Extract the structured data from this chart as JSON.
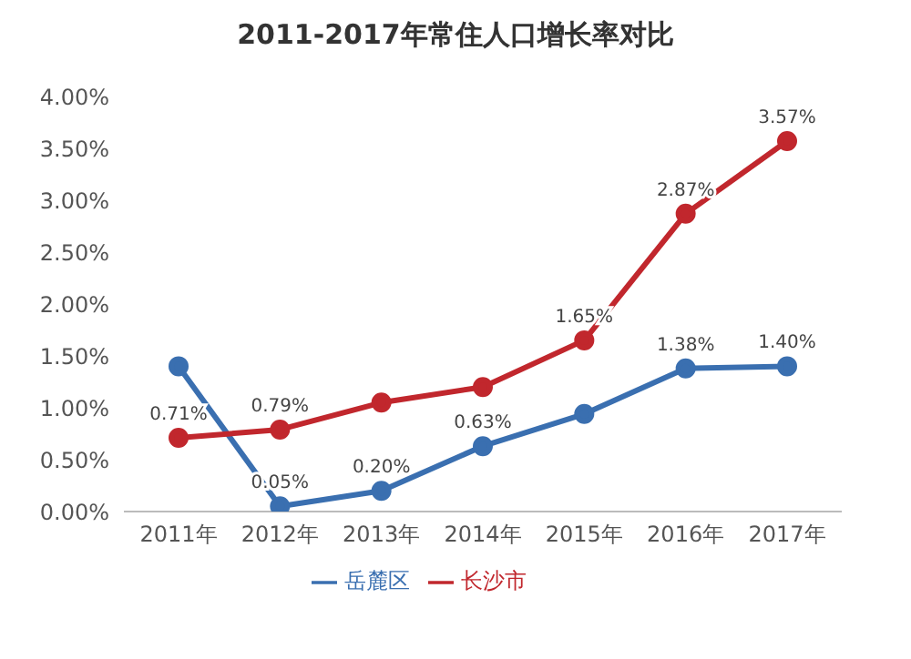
{
  "chart_data": {
    "type": "line",
    "title": "2011-2017年常住人口增长率对比",
    "categories": [
      "2011年",
      "2012年",
      "2013年",
      "2014年",
      "2015年",
      "2016年",
      "2017年"
    ],
    "series": [
      {
        "name": "岳麓区",
        "color": "#3a6fb0",
        "values": [
          1.4,
          0.05,
          0.2,
          0.63,
          0.94,
          1.38,
          1.4
        ],
        "value_labels": [
          null,
          "0.05%",
          "0.20%",
          "0.63%",
          null,
          "1.38%",
          "1.40%"
        ]
      },
      {
        "name": "长沙市",
        "color": "#c1272d",
        "values": [
          0.71,
          0.79,
          1.05,
          1.2,
          1.65,
          2.87,
          3.57
        ],
        "value_labels": [
          "0.71%",
          "0.79%",
          null,
          null,
          "1.65%",
          "2.87%",
          "3.57%"
        ]
      }
    ],
    "ylim": [
      0,
      4
    ],
    "yticks": [
      {
        "value": 0,
        "label": "0.00%"
      },
      {
        "value": 0.5,
        "label": "0.50%"
      },
      {
        "value": 1,
        "label": "1.00%"
      },
      {
        "value": 1.5,
        "label": "1.50%"
      },
      {
        "value": 2,
        "label": "2.00%"
      },
      {
        "value": 2.5,
        "label": "2.50%"
      },
      {
        "value": 3,
        "label": "3.00%"
      },
      {
        "value": 3.5,
        "label": "3.50%"
      },
      {
        "value": 4,
        "label": "4.00%"
      }
    ],
    "grid": false,
    "legend": "bottom",
    "marker": "circle",
    "line_style": "solid"
  }
}
